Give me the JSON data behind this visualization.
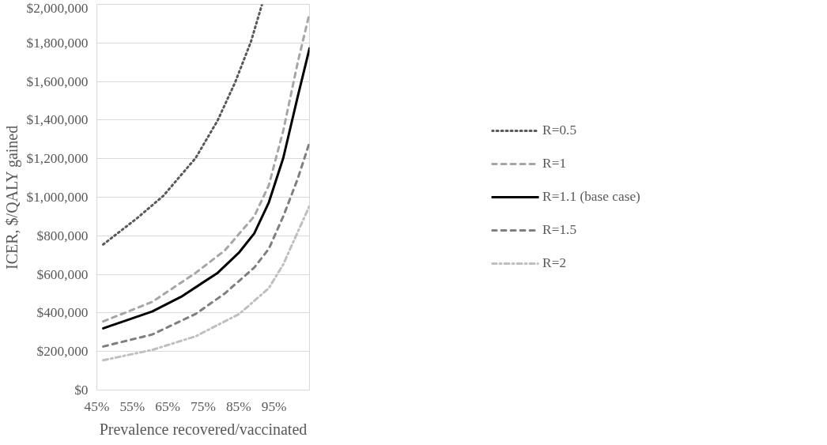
{
  "chart_data": {
    "type": "line",
    "xlabel": "Prevalence recovered/vaccinated",
    "ylabel": "ICER, $/QALY gained",
    "xlim": [
      45,
      105
    ],
    "xticks": [
      {
        "value": 45,
        "label": "45%"
      },
      {
        "value": 55,
        "label": "55%"
      },
      {
        "value": 65,
        "label": "65%"
      },
      {
        "value": 75,
        "label": "75%"
      },
      {
        "value": 85,
        "label": "85%"
      },
      {
        "value": 95,
        "label": "95%"
      }
    ],
    "ylim": [
      0,
      2000000
    ],
    "yticks": [
      {
        "value": 0,
        "label": "$0"
      },
      {
        "value": 200000,
        "label": "$200,000"
      },
      {
        "value": 400000,
        "label": "$400,000"
      },
      {
        "value": 600000,
        "label": "$600,000"
      },
      {
        "value": 800000,
        "label": "$800,000"
      },
      {
        "value": 1000000,
        "label": "$1,000,000"
      },
      {
        "value": 1200000,
        "label": "$1,200,000"
      },
      {
        "value": 1400000,
        "label": "$1,400,000"
      },
      {
        "value": 1600000,
        "label": "$1,600,000"
      },
      {
        "value": 1800000,
        "label": "$1,800,000"
      },
      {
        "value": 2000000,
        "label": "$2,000,000"
      }
    ],
    "grid": "y",
    "legend": "right",
    "series": [
      {
        "name": "R=0.5",
        "color": "#595959",
        "line_style": "dotted",
        "x": [
          46.8,
          56.4,
          63.8,
          72.9,
          79.1,
          84.0,
          88.5,
          91.6
        ],
        "values": [
          755000,
          892000,
          1008000,
          1204000,
          1399000,
          1595000,
          1808000,
          2000000
        ]
      },
      {
        "name": "R=1",
        "color": "#a6a6a6",
        "line_style": "dashed",
        "x": [
          46.8,
          60.6,
          72.9,
          81.1,
          89.4,
          93.5,
          97.6,
          101.7,
          105
        ],
        "values": [
          356000,
          457000,
          608000,
          724000,
          901000,
          1061000,
          1346000,
          1701000,
          1954000
        ]
      },
      {
        "name": "R=1.1 (base case)",
        "color": "#000000",
        "line_style": "solid",
        "x": [
          46.8,
          60.6,
          68.8,
          79.1,
          85.2,
          89.4,
          93.5,
          97.6,
          101.7,
          105
        ],
        "values": [
          320000,
          407000,
          484000,
          608000,
          715000,
          812000,
          972000,
          1204000,
          1524000,
          1772000
        ]
      },
      {
        "name": "R=1.5",
        "color": "#7f7f7f",
        "line_style": "dashed",
        "x": [
          46.8,
          60.6,
          72.9,
          81.1,
          89.4,
          93.5,
          97.6,
          101.7,
          105
        ],
        "values": [
          226000,
          288000,
          395000,
          501000,
          635000,
          732000,
          901000,
          1097000,
          1284000
        ]
      },
      {
        "name": "R=2",
        "color": "#bfbfbf",
        "line_style": "dashdot",
        "x": [
          46.8,
          60.6,
          72.9,
          85.2,
          93.5,
          97.6,
          101.7,
          105
        ],
        "values": [
          155000,
          208000,
          279000,
          395000,
          528000,
          652000,
          821000,
          955000
        ]
      }
    ]
  }
}
